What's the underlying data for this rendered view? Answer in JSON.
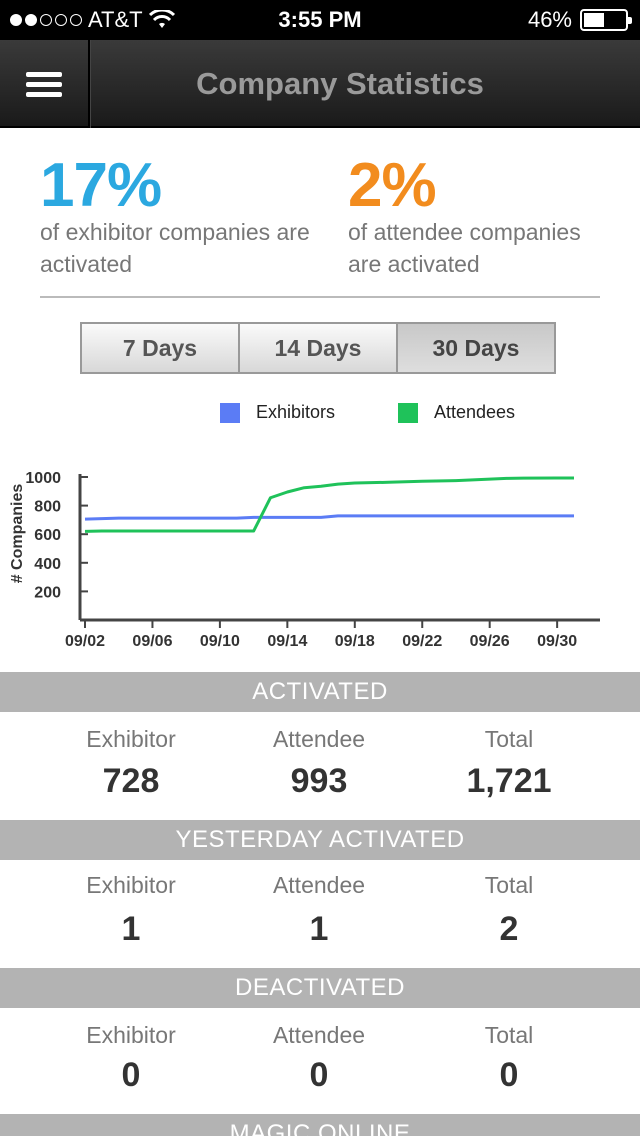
{
  "status_bar": {
    "carrier": "AT&T",
    "time": "3:55 PM",
    "battery": "46%"
  },
  "nav": {
    "title": "Company Statistics"
  },
  "summary": {
    "exhibitor_pct": "17%",
    "exhibitor_desc": "of exhibitor companies are activated",
    "attendee_pct": "2%",
    "attendee_desc": "of attendee companies are activated"
  },
  "range_tabs": [
    {
      "label": "7 Days",
      "active": false
    },
    {
      "label": "14 Days",
      "active": false
    },
    {
      "label": "30 Days",
      "active": true
    }
  ],
  "legend": {
    "exhibitors": "Exhibitors",
    "attendees": "Attendees",
    "exhibitors_color": "#5b7cf5",
    "attendees_color": "#1fc25a"
  },
  "chart_data": {
    "type": "line",
    "ylabel": "# Companies",
    "ylim": [
      0,
      1000
    ],
    "y_ticks": [
      "200",
      "400",
      "600",
      "800",
      "1000"
    ],
    "x_ticks": [
      "09/02",
      "09/06",
      "09/10",
      "09/14",
      "09/18",
      "09/22",
      "09/26",
      "09/30"
    ],
    "xlim": [
      2,
      31
    ],
    "series": [
      {
        "name": "Exhibitors",
        "color": "#5b7cf5",
        "x": [
          2,
          4,
          11,
          12,
          16,
          17,
          31
        ],
        "y": [
          705,
          712,
          712,
          718,
          718,
          728,
          728
        ]
      },
      {
        "name": "Attendees",
        "color": "#1fc25a",
        "x": [
          2,
          3,
          11,
          12,
          13,
          14,
          15,
          16,
          17,
          18,
          20,
          22,
          24,
          26,
          27,
          28,
          30,
          31
        ],
        "y": [
          620,
          622,
          622,
          622,
          855,
          895,
          925,
          935,
          950,
          958,
          963,
          970,
          975,
          985,
          990,
          992,
          993,
          993
        ]
      }
    ]
  },
  "sections": [
    {
      "title": "ACTIVATED",
      "labels": [
        "Exhibitor",
        "Attendee",
        "Total"
      ],
      "values": [
        "728",
        "993",
        "1,721"
      ]
    },
    {
      "title": "YESTERDAY ACTIVATED",
      "labels": [
        "Exhibitor",
        "Attendee",
        "Total"
      ],
      "values": [
        "1",
        "1",
        "2"
      ]
    },
    {
      "title": "DEACTIVATED",
      "labels": [
        "Exhibitor",
        "Attendee",
        "Total"
      ],
      "values": [
        "0",
        "0",
        "0"
      ]
    },
    {
      "title": "MAGIC ONLINE"
    }
  ]
}
